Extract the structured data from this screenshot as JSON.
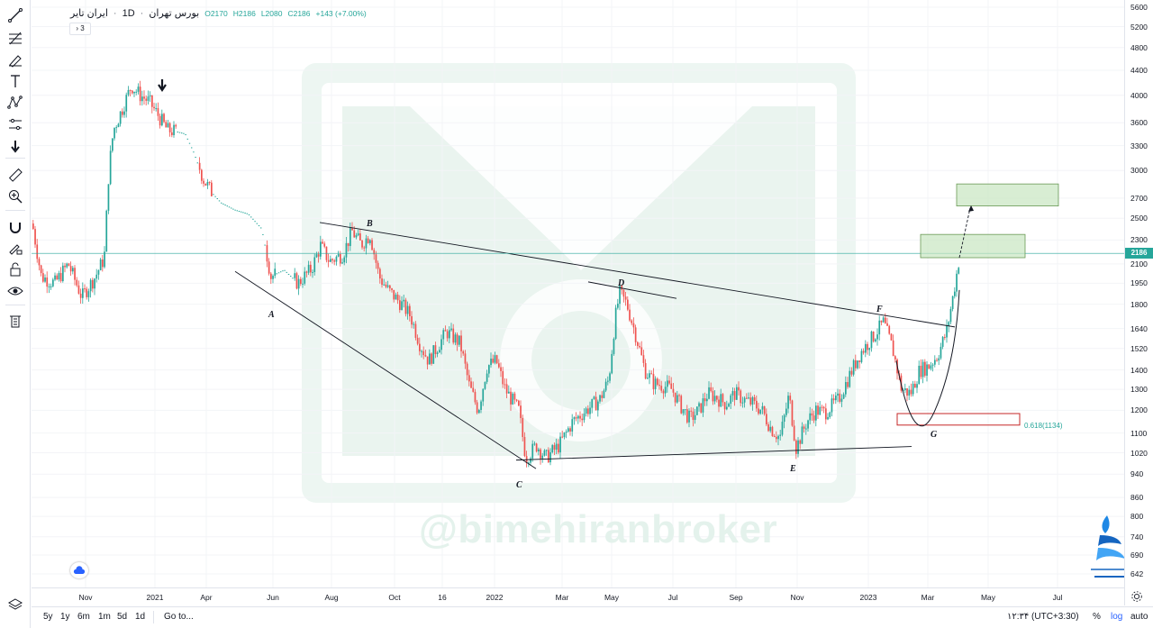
{
  "legend": {
    "symbol": "ایران تایر",
    "interval": "1D",
    "exchange": "بورس تهران",
    "open": "O2170",
    "high": "H2186",
    "low": "L2080",
    "close": "C2186",
    "change": "+143 (+7.00%)"
  },
  "indicator_toggle": "› 3",
  "price_axis": {
    "scale": "log",
    "ticks": [
      "5600",
      "5200",
      "4800",
      "4400",
      "4000",
      "3600",
      "3300",
      "3000",
      "2700",
      "2500",
      "2300",
      "2100",
      "1950",
      "1800",
      "1640",
      "1520",
      "1400",
      "1300",
      "1200",
      "1100",
      "1020",
      "940",
      "860",
      "800",
      "740",
      "690",
      "642"
    ],
    "last_price_label": "2186"
  },
  "time_axis": {
    "ticks": [
      "Nov",
      "2021",
      "Apr",
      "Jun",
      "Aug",
      "Oct",
      "16",
      "2022",
      "Mar",
      "May",
      "Jul",
      "Sep",
      "Nov",
      "2023",
      "Mar",
      "May",
      "Jul"
    ]
  },
  "wave_labels": [
    "A",
    "B",
    "C",
    "D",
    "E",
    "F",
    "G"
  ],
  "fib_label": "0.618(1134)",
  "watermark": "@bimehiranbroker",
  "bottom_bar": {
    "ranges": [
      "5y",
      "1y",
      "6m",
      "1m",
      "5d",
      "1d"
    ],
    "goto": "Go to...",
    "time": "۱۲:۳۴ (UTC+3:30)",
    "percent": "%",
    "log": "log",
    "auto": "auto"
  },
  "colors": {
    "up": "#26a69a",
    "down": "#ef5350",
    "last_price_line": "#26a69a",
    "target_zone": "#c8e6c0",
    "fib_box": "#c62828"
  },
  "chart_data": {
    "type": "candlestick",
    "symbol": "ایران تایر",
    "interval": "1D",
    "y_scale": "log",
    "ylim": [
      600,
      5800
    ],
    "last": {
      "open": 2170,
      "high": 2186,
      "low": 2080,
      "close": 2186,
      "change": 143,
      "change_pct": 7.0
    },
    "wave_points": [
      {
        "label": "A",
        "price": 1950
      },
      {
        "label": "B",
        "price": 2400
      },
      {
        "label": "C",
        "price": 1000
      },
      {
        "label": "D",
        "price": 1900
      },
      {
        "label": "E",
        "price": 1030
      },
      {
        "label": "F",
        "price": 1680
      },
      {
        "label": "G",
        "price": 1134
      }
    ],
    "fib_level": {
      "ratio": 0.618,
      "price": 1134
    },
    "target_zones": [
      [
        2150,
        2350
      ],
      [
        2620,
        2850
      ]
    ]
  }
}
